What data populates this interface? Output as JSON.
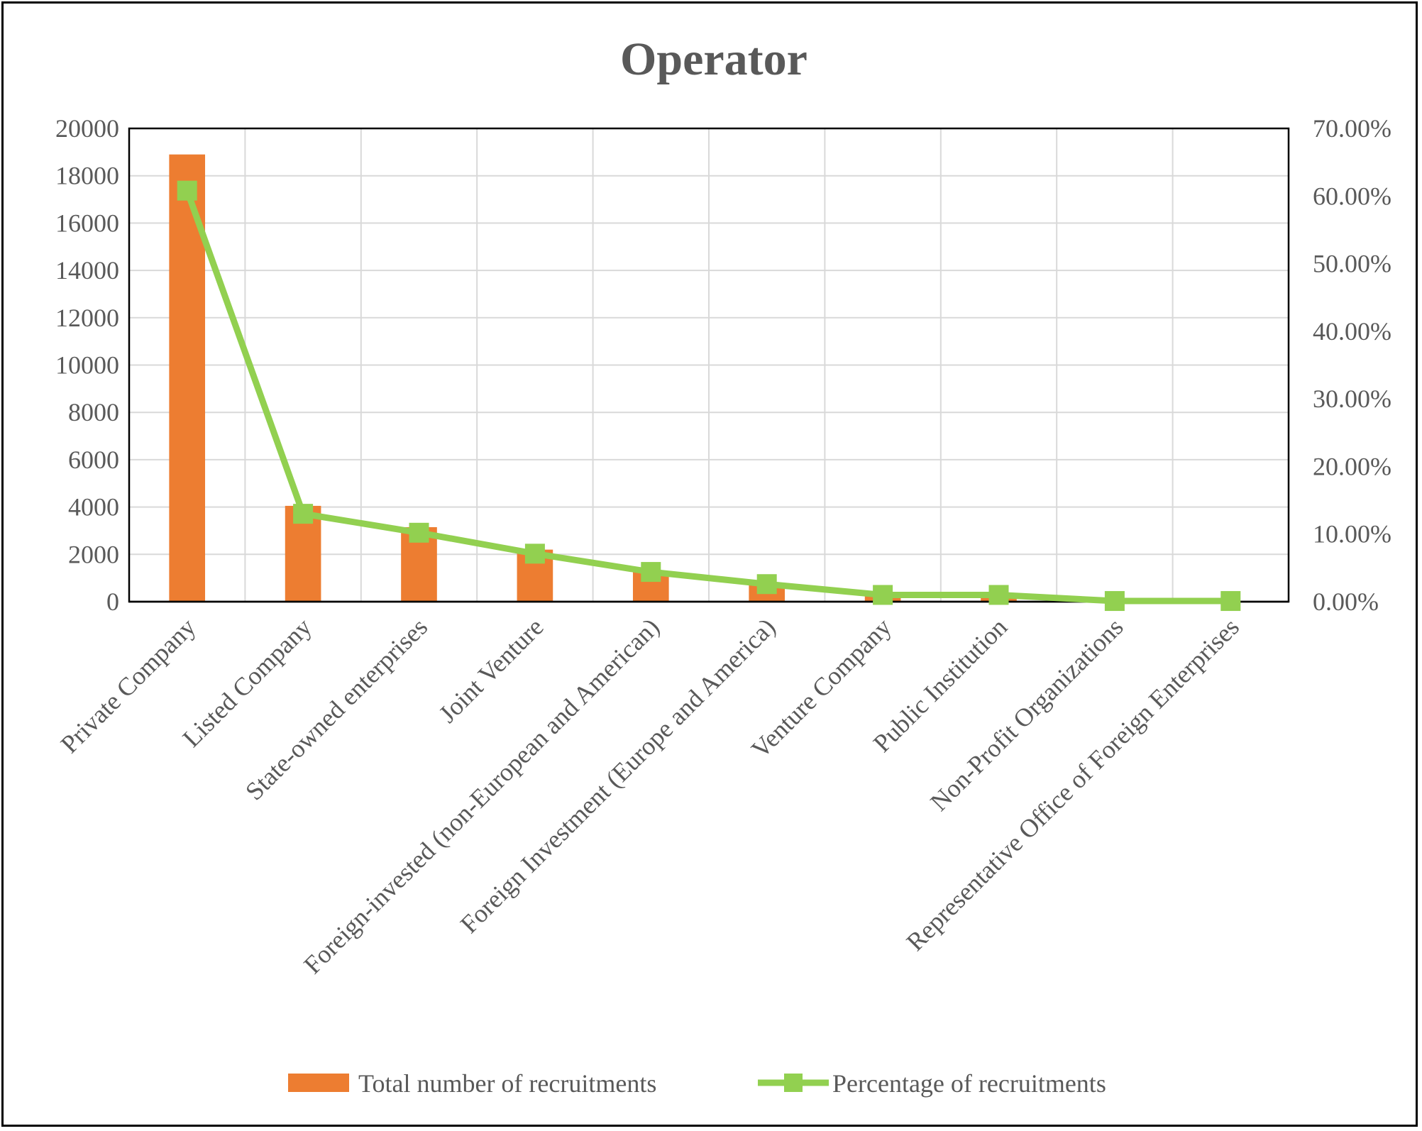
{
  "chart_data": {
    "type": "bar",
    "title": "Operator",
    "categories": [
      "Private Company",
      "Listed Company",
      "State-owned enterprises",
      "Joint Venture",
      "Foreign-invested (non-European and American)",
      "Foreign Investment (Europe and America)",
      "Venture Company",
      "Public Institution",
      "Non-Profit Organizations",
      "Representative Office of Foreign Enterprises"
    ],
    "series": [
      {
        "name": "Total number of recruitments",
        "type": "bar",
        "axis": "left",
        "color": "#ED7D31",
        "values": [
          18900,
          4050,
          3150,
          2200,
          1300,
          800,
          300,
          300,
          50,
          30
        ]
      },
      {
        "name": "Percentage of recruitments",
        "type": "line",
        "axis": "right",
        "color": "#92D050",
        "values": [
          0.608,
          0.13,
          0.102,
          0.071,
          0.044,
          0.026,
          0.01,
          0.01,
          0.001,
          0.001
        ]
      }
    ],
    "y_left": {
      "lim": [
        0,
        20000
      ],
      "ticks": [
        "0",
        "2000",
        "4000",
        "6000",
        "8000",
        "10000",
        "12000",
        "14000",
        "16000",
        "18000",
        "20000"
      ]
    },
    "y_right": {
      "lim": [
        0,
        0.7
      ],
      "ticks": [
        "0.00%",
        "10.00%",
        "20.00%",
        "30.00%",
        "40.00%",
        "50.00%",
        "60.00%",
        "70.00%"
      ]
    },
    "grid": true,
    "legend_position": "bottom"
  }
}
